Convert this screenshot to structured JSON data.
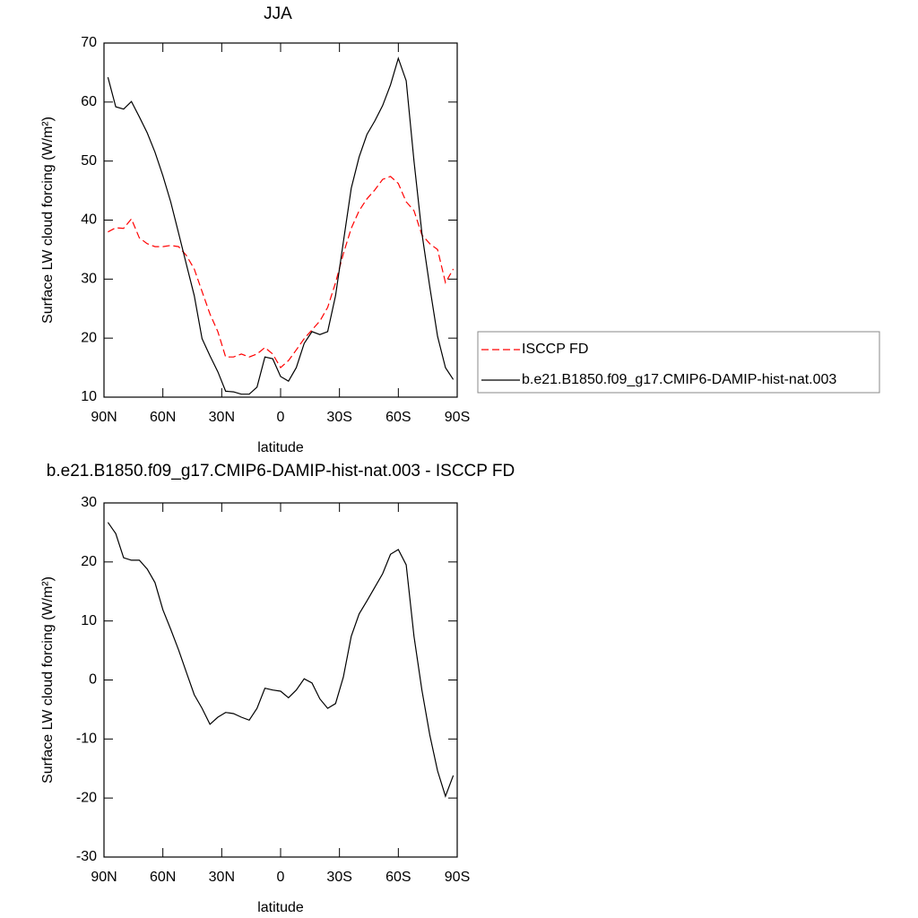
{
  "chart_data": [
    {
      "type": "line",
      "title": "JJA",
      "xlabel": "latitude",
      "ylabel": "Surface LW cloud forcing (W/m²)",
      "x": [
        88,
        84,
        80,
        76,
        72,
        68,
        64,
        60,
        56,
        52,
        48,
        44,
        40,
        36,
        32,
        28,
        24,
        20,
        16,
        12,
        8,
        4,
        0,
        -4,
        -8,
        -12,
        -16,
        -20,
        -24,
        -28,
        -32,
        -36,
        -40,
        -44,
        -48,
        -52,
        -56,
        -60,
        -64,
        -68,
        -72,
        -76,
        -80,
        -84,
        -88
      ],
      "series": [
        {
          "name": "ISCCP FD",
          "color": "#ff0000",
          "linestyle": "dashed",
          "values": [
            38,
            38.7,
            38.6,
            40.2,
            37,
            36,
            35.5,
            35.5,
            35.7,
            35.5,
            34,
            31.7,
            27.9,
            24.1,
            21.1,
            16.8,
            16.8,
            17.3,
            16.8,
            17.3,
            18.4,
            17.3,
            15,
            16.2,
            18,
            19.9,
            21.4,
            22.9,
            25.2,
            29.4,
            34.3,
            38.6,
            41.6,
            43.6,
            45.1,
            46.9,
            47.4,
            46.2,
            43.1,
            41.6,
            37.5,
            36,
            35,
            29.4,
            31.7
          ]
        },
        {
          "name": "b.e21.B1850.f09_g17.CMIP6-DAMIP-hist-nat.003",
          "color": "#000000",
          "linestyle": "solid",
          "values": [
            64.2,
            59.2,
            58.8,
            60.1,
            57.5,
            54.8,
            51.5,
            47.5,
            43.1,
            37.8,
            32.5,
            27.2,
            19.9,
            17,
            14.3,
            11,
            10.9,
            10.5,
            10.5,
            11.7,
            16.8,
            16.5,
            13.5,
            12.7,
            15,
            19.1,
            21.1,
            20.6,
            21.1,
            27.2,
            36.3,
            45.4,
            50.7,
            54.5,
            56.8,
            59.4,
            62.9,
            67.4,
            63.6,
            50,
            37.8,
            28.7,
            20.3,
            15,
            13
          ]
        }
      ],
      "xlim": [
        90,
        -90
      ],
      "xticks": [
        {
          "value": 90,
          "label": "90N"
        },
        {
          "value": 60,
          "label": "60N"
        },
        {
          "value": 30,
          "label": "30N"
        },
        0,
        {
          "value": -30,
          "label": "30S"
        },
        {
          "value": -60,
          "label": "60S"
        },
        {
          "value": -90,
          "label": "90S"
        }
      ],
      "ylim": [
        10,
        70
      ],
      "yticks": [
        10,
        20,
        30,
        40,
        50,
        60,
        70
      ],
      "legend": "right"
    },
    {
      "type": "line",
      "title": "b.e21.B1850.f09_g17.CMIP6-DAMIP-hist-nat.003 - ISCCP FD",
      "xlabel": "latitude",
      "ylabel": "Surface LW cloud forcing (W/m²)",
      "x": [
        88,
        84,
        80,
        76,
        72,
        68,
        64,
        60,
        56,
        52,
        48,
        44,
        40,
        36,
        32,
        28,
        24,
        20,
        16,
        12,
        8,
        4,
        0,
        -4,
        -8,
        -12,
        -16,
        -20,
        -24,
        -28,
        -32,
        -36,
        -40,
        -44,
        -48,
        -52,
        -56,
        -60,
        -64,
        -68,
        -72,
        -76,
        -80,
        -84,
        -88
      ],
      "series": [
        {
          "color": "#000000",
          "linestyle": "solid",
          "values": [
            26.7,
            24.8,
            20.7,
            20.3,
            20.3,
            18.8,
            16.5,
            11.9,
            8.6,
            5.1,
            1.3,
            -2.5,
            -4.8,
            -7.5,
            -6.3,
            -5.5,
            -5.7,
            -6.3,
            -6.8,
            -4.8,
            -1.4,
            -1.7,
            -1.9,
            -3,
            -1.7,
            0.2,
            -0.5,
            -3.2,
            -4.8,
            -4,
            0.5,
            7.4,
            11.2,
            13.4,
            15.7,
            18,
            21.3,
            22.1,
            19.5,
            7.4,
            -1.7,
            -9.3,
            -15.4,
            -19.7,
            -16.2
          ]
        }
      ],
      "xlim": [
        90,
        -90
      ],
      "xticks": [
        {
          "value": 90,
          "label": "90N"
        },
        {
          "value": 60,
          "label": "60N"
        },
        {
          "value": 30,
          "label": "30N"
        },
        0,
        {
          "value": -30,
          "label": "30S"
        },
        {
          "value": -60,
          "label": "60S"
        },
        {
          "value": -90,
          "label": "90S"
        }
      ],
      "ylim": [
        -30,
        30
      ],
      "yticks": [
        -30,
        -20,
        -10,
        0,
        10,
        20,
        30
      ]
    }
  ]
}
